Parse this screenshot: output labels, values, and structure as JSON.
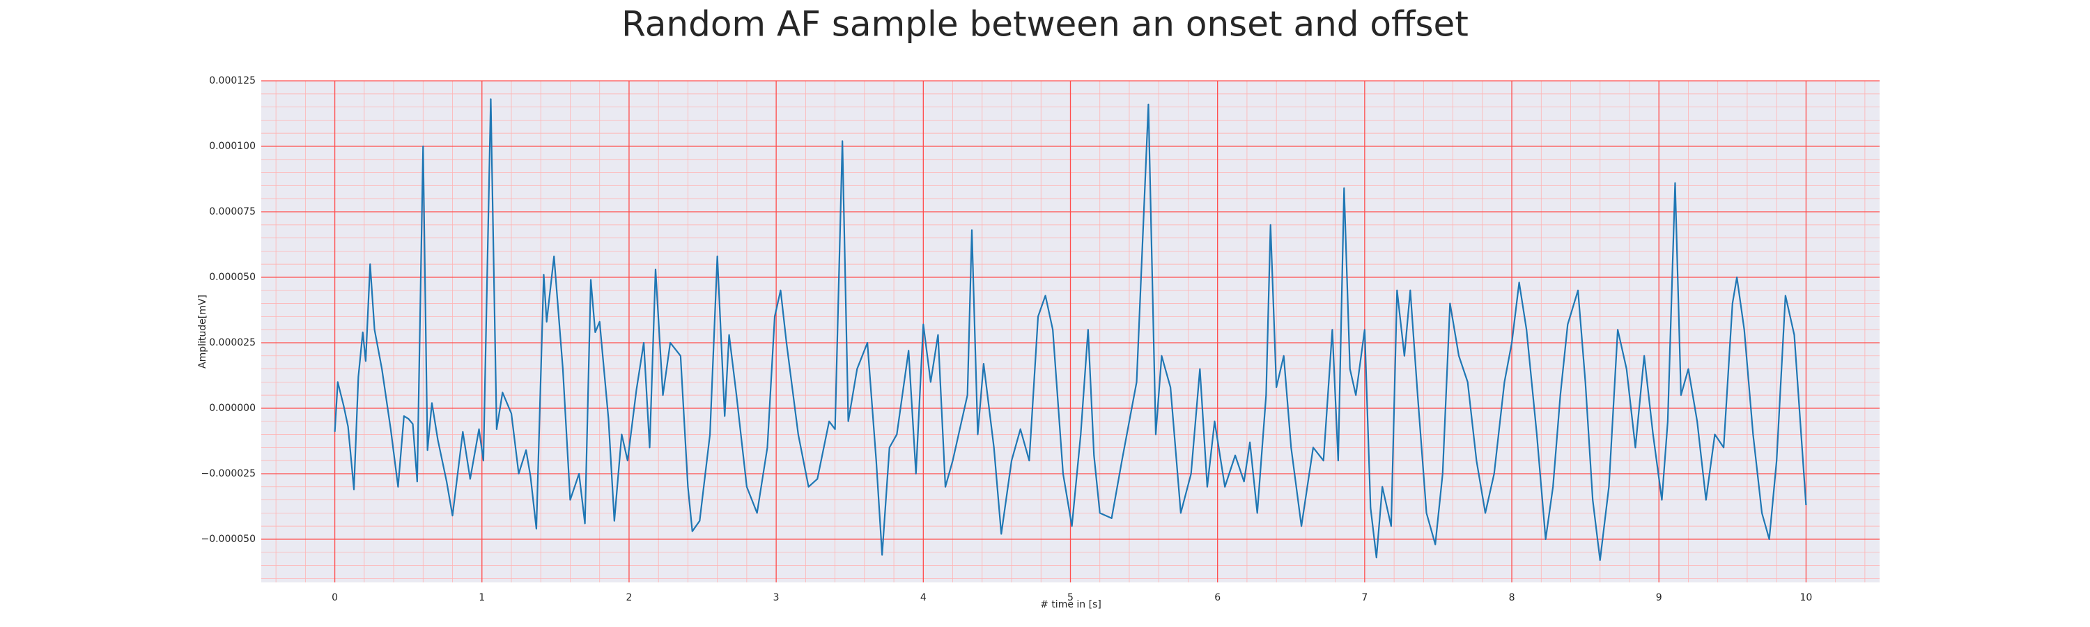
{
  "chart_data": {
    "type": "line",
    "title": "Random AF sample between an onset and offset",
    "x_label": "# time in [s]",
    "y_label": "Amplitude[mV]",
    "color": "#1f77b4",
    "grid": true,
    "minor_grid": true,
    "xlim": [
      -0.5,
      10.5
    ],
    "ylim": [
      -6.65e-05,
      0.000125
    ],
    "xticks": [
      0,
      1,
      2,
      3,
      4,
      5,
      6,
      7,
      8,
      9,
      10
    ],
    "yticks": [
      {
        "value": -5e-05,
        "label": "−0.000050"
      },
      {
        "value": -2.5e-05,
        "label": "−0.000025"
      },
      {
        "value": 0,
        "label": "0.000000"
      },
      {
        "value": 2.5e-05,
        "label": "0.000025"
      },
      {
        "value": 5e-05,
        "label": "0.000050"
      },
      {
        "value": 7.5e-05,
        "label": "0.000075"
      },
      {
        "value": 0.0001,
        "label": "0.000100"
      },
      {
        "value": 0.000125,
        "label": "0.000125"
      }
    ],
    "x": [
      0,
      0.02,
      0.06,
      0.09,
      0.13,
      0.16,
      0.19,
      0.21,
      0.24,
      0.27,
      0.32,
      0.38,
      0.43,
      0.47,
      0.5,
      0.53,
      0.56,
      0.6,
      0.63,
      0.66,
      0.7,
      0.76,
      0.8,
      0.87,
      0.92,
      0.98,
      1.01,
      1.06,
      1.1,
      1.14,
      1.2,
      1.25,
      1.3,
      1.33,
      1.37,
      1.42,
      1.44,
      1.49,
      1.55,
      1.6,
      1.66,
      1.7,
      1.74,
      1.77,
      1.8,
      1.86,
      1.9,
      1.95,
      1.99,
      2.05,
      2.1,
      2.14,
      2.18,
      2.23,
      2.28,
      2.35,
      2.4,
      2.43,
      2.48,
      2.55,
      2.6,
      2.65,
      2.68,
      2.73,
      2.8,
      2.87,
      2.94,
      2.99,
      3.03,
      3.07,
      3.15,
      3.22,
      3.28,
      3.36,
      3.4,
      3.45,
      3.49,
      3.55,
      3.62,
      3.68,
      3.72,
      3.77,
      3.82,
      3.9,
      3.95,
      4,
      4.05,
      4.1,
      4.15,
      4.2,
      4.3,
      4.33,
      4.37,
      4.41,
      4.48,
      4.53,
      4.6,
      4.66,
      4.72,
      4.78,
      4.83,
      4.88,
      4.95,
      5.01,
      5.07,
      5.12,
      5.16,
      5.2,
      5.28,
      5.35,
      5.4,
      5.45,
      5.53,
      5.58,
      5.62,
      5.68,
      5.75,
      5.82,
      5.88,
      5.93,
      5.98,
      6.05,
      6.12,
      6.18,
      6.22,
      6.27,
      6.33,
      6.36,
      6.4,
      6.45,
      6.5,
      6.57,
      6.65,
      6.72,
      6.78,
      6.82,
      6.86,
      6.9,
      6.94,
      7,
      7.04,
      7.08,
      7.12,
      7.18,
      7.22,
      7.27,
      7.31,
      7.36,
      7.42,
      7.48,
      7.53,
      7.58,
      7.64,
      7.7,
      7.76,
      7.82,
      7.88,
      7.95,
      8,
      8.05,
      8.1,
      8.17,
      8.23,
      8.28,
      8.33,
      8.38,
      8.45,
      8.5,
      8.55,
      8.6,
      8.66,
      8.72,
      8.78,
      8.84,
      8.9,
      8.96,
      9.02,
      9.06,
      9.11,
      9.15,
      9.2,
      9.26,
      9.32,
      9.38,
      9.44,
      9.5,
      9.53,
      9.58,
      9.64,
      9.7,
      9.75,
      9.8,
      9.86,
      9.92,
      10
    ],
    "values": [
      -9e-06,
      1e-05,
      1e-06,
      -7e-06,
      -3.1e-05,
      1.2e-05,
      2.9e-05,
      1.8e-05,
      5.5e-05,
      3e-05,
      1.5e-05,
      -8e-06,
      -3e-05,
      -3e-06,
      -4e-06,
      -6e-06,
      -2.8e-05,
      0.0001,
      -1.6e-05,
      2e-06,
      -1.2e-05,
      -2.8e-05,
      -4.1e-05,
      -9e-06,
      -2.7e-05,
      -8e-06,
      -2e-05,
      0.000118,
      -8e-06,
      6e-06,
      -2e-06,
      -2.5e-05,
      -1.6e-05,
      -2.6e-05,
      -4.6e-05,
      5.1e-05,
      3.3e-05,
      5.8e-05,
      1.5e-05,
      -3.5e-05,
      -2.5e-05,
      -4.4e-05,
      4.9e-05,
      2.9e-05,
      3.3e-05,
      -4e-06,
      -4.3e-05,
      -1e-05,
      -2e-05,
      7e-06,
      2.5e-05,
      -1.5e-05,
      5.3e-05,
      5e-06,
      2.5e-05,
      2e-05,
      -3e-05,
      -4.7e-05,
      -4.3e-05,
      -1e-05,
      5.8e-05,
      -3e-06,
      2.8e-05,
      5e-06,
      -3e-05,
      -4e-05,
      -1.5e-05,
      3.5e-05,
      4.5e-05,
      2.5e-05,
      -1e-05,
      -3e-05,
      -2.7e-05,
      -5e-06,
      -8e-06,
      0.000102,
      -5e-06,
      1.5e-05,
      2.5e-05,
      -2e-05,
      -5.6e-05,
      -1.5e-05,
      -1e-05,
      2.2e-05,
      -2.5e-05,
      3.2e-05,
      1e-05,
      2.8e-05,
      -3e-05,
      -2e-05,
      5e-06,
      6.8e-05,
      -1e-05,
      1.7e-05,
      -1.5e-05,
      -4.8e-05,
      -2e-05,
      -8e-06,
      -2e-05,
      3.5e-05,
      4.3e-05,
      3e-05,
      -2.5e-05,
      -4.5e-05,
      -1e-05,
      3e-05,
      -1.8e-05,
      -4e-05,
      -4.2e-05,
      -2e-05,
      -5e-06,
      1e-05,
      0.000116,
      -1e-05,
      2e-05,
      8e-06,
      -4e-05,
      -2.5e-05,
      1.5e-05,
      -3e-05,
      -5e-06,
      -3e-05,
      -1.8e-05,
      -2.8e-05,
      -1.3e-05,
      -4e-05,
      5e-06,
      7e-05,
      8e-06,
      2e-05,
      -1.5e-05,
      -4.5e-05,
      -1.5e-05,
      -2e-05,
      3e-05,
      -2e-05,
      8.4e-05,
      1.5e-05,
      5e-06,
      3e-05,
      -3.8e-05,
      -5.7e-05,
      -3e-05,
      -4.5e-05,
      4.5e-05,
      2e-05,
      4.5e-05,
      5e-06,
      -4e-05,
      -5.2e-05,
      -2.5e-05,
      4e-05,
      2e-05,
      1e-05,
      -2e-05,
      -4e-05,
      -2.5e-05,
      1e-05,
      2.5e-05,
      4.8e-05,
      3e-05,
      -1e-05,
      -5e-05,
      -3e-05,
      5e-06,
      3.2e-05,
      4.5e-05,
      1e-05,
      -3.5e-05,
      -5.8e-05,
      -3e-05,
      3e-05,
      1.5e-05,
      -1.5e-05,
      2e-05,
      -1e-05,
      -3.5e-05,
      -5e-06,
      8.6e-05,
      5e-06,
      1.5e-05,
      -5e-06,
      -3.5e-05,
      -1e-05,
      -1.5e-05,
      4e-05,
      5e-05,
      3e-05,
      -1e-05,
      -4e-05,
      -5e-05,
      -2e-05,
      4.3e-05,
      2.8e-05,
      -3.7e-05
    ]
  }
}
